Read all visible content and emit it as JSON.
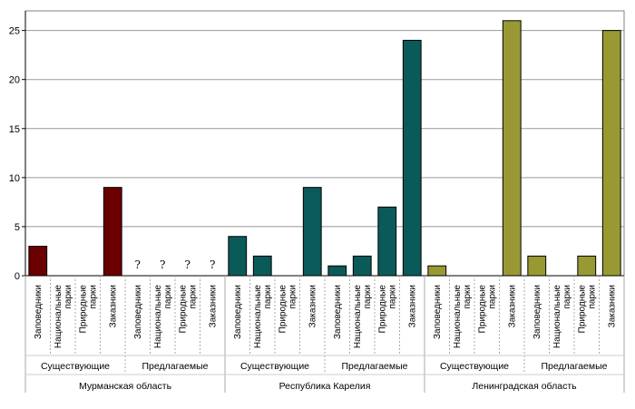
{
  "chart_data": {
    "type": "bar",
    "ylim": [
      0,
      27
    ],
    "yticks": [
      "0",
      "5",
      "10",
      "15",
      "20",
      "25"
    ],
    "grid": true,
    "legend": "none",
    "categories": [
      [
        "Заповедники"
      ],
      [
        "Национальные",
        "парки"
      ],
      [
        "Природные",
        "парки"
      ],
      [
        "Заказники"
      ],
      [
        "Заповедники"
      ],
      [
        "Национальные",
        "парки"
      ],
      [
        "Природные",
        "парки"
      ],
      [
        "Заказники"
      ],
      [
        "Заповедники"
      ],
      [
        "Национальные",
        "парки"
      ],
      [
        "Природные",
        "парки"
      ],
      [
        "Заказники"
      ],
      [
        "Заповедники"
      ],
      [
        "Национальные",
        "парки"
      ],
      [
        "Природные",
        "парки"
      ],
      [
        "Заказники"
      ],
      [
        "Заповедники"
      ],
      [
        "Национальные",
        "парки"
      ],
      [
        "Природные",
        "парки"
      ],
      [
        "Заказники"
      ],
      [
        "Заповедники"
      ],
      [
        "Национальные",
        "парки"
      ],
      [
        "Природные",
        "парки"
      ],
      [
        "Заказники"
      ]
    ],
    "values": [
      3,
      0,
      0,
      9,
      null,
      null,
      null,
      null,
      4,
      2,
      0,
      9,
      1,
      2,
      7,
      24,
      1,
      0,
      0,
      26,
      2,
      0,
      2,
      25
    ],
    "unknown_marker": "?",
    "status_groups": [
      "Существующие",
      "Предлагаемые",
      "Существующие",
      "Предлагаемые",
      "Существующие",
      "Предлагаемые"
    ],
    "regions": [
      {
        "name": "Мурманская область",
        "color": "#6b0000"
      },
      {
        "name": "Республика Карелия",
        "color": "#0b5a5a"
      },
      {
        "name": "Ленинградская область",
        "color": "#999933"
      }
    ]
  }
}
